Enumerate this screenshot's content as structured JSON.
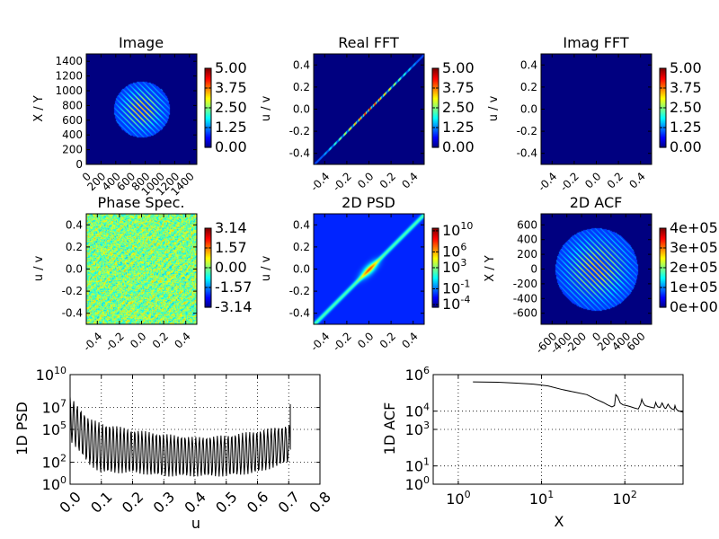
{
  "chart_data": [
    {
      "type": "heatmap",
      "title": "Image",
      "ylabel": "X / Y",
      "xlim": [
        0,
        1500
      ],
      "ylim": [
        0,
        1500
      ],
      "xticks": [
        "0",
        "200",
        "400",
        "600",
        "800",
        "1000",
        "1200",
        "1400"
      ],
      "xtick_values": [
        0,
        200,
        400,
        600,
        800,
        1000,
        1200,
        1400
      ],
      "yticks": [
        "0",
        "200",
        "400",
        "600",
        "800",
        "1000",
        "1200",
        "1400"
      ],
      "ytick_values": [
        0,
        200,
        400,
        600,
        800,
        1000,
        1200,
        1400
      ],
      "pattern": "stripes-disk",
      "center": [
        750,
        750
      ],
      "radius": 380,
      "colorbar": {
        "ticks": [
          "0.00",
          "1.25",
          "2.50",
          "3.75",
          "5.00"
        ],
        "tick_values": [
          0,
          1.25,
          2.5,
          3.75,
          5
        ]
      }
    },
    {
      "type": "heatmap",
      "title": "Real FFT",
      "ylabel": "u / v",
      "xlim": [
        -0.5,
        0.5
      ],
      "ylim": [
        -0.5,
        0.5
      ],
      "xticks": [
        "-0.4",
        "-0.2",
        "0.0",
        "0.2",
        "0.4"
      ],
      "xtick_values": [
        -0.4,
        -0.2,
        0,
        0.2,
        0.4
      ],
      "yticks": [
        "-0.4",
        "-0.2",
        "0.0",
        "0.2",
        "0.4"
      ],
      "ytick_values": [
        -0.4,
        -0.2,
        0,
        0.2,
        0.4
      ],
      "pattern": "thin-diagonal",
      "colorbar": {
        "ticks": [
          "0.00",
          "1.25",
          "2.50",
          "3.75",
          "5.00"
        ],
        "tick_values": [
          0,
          1.25,
          2.5,
          3.75,
          5
        ]
      }
    },
    {
      "type": "heatmap",
      "title": "Imag FFT",
      "ylabel": "u / v",
      "xlim": [
        -0.5,
        0.5
      ],
      "ylim": [
        -0.5,
        0.5
      ],
      "xticks": [
        "-0.4",
        "-0.2",
        "0.0",
        "0.2",
        "0.4"
      ],
      "xtick_values": [
        -0.4,
        -0.2,
        0,
        0.2,
        0.4
      ],
      "yticks": [
        "-0.4",
        "-0.2",
        "0.0",
        "0.2",
        "0.4"
      ],
      "ytick_values": [
        -0.4,
        -0.2,
        0,
        0.2,
        0.4
      ],
      "pattern": "empty",
      "colorbar": {
        "ticks": [
          "0.00",
          "1.25",
          "2.50",
          "3.75",
          "5.00"
        ],
        "tick_values": [
          0,
          1.25,
          2.5,
          3.75,
          5
        ]
      }
    },
    {
      "type": "heatmap",
      "title": "Phase Spec.",
      "ylabel": "u / v",
      "xlim": [
        -0.5,
        0.5
      ],
      "ylim": [
        -0.5,
        0.5
      ],
      "xticks": [
        "-0.4",
        "-0.2",
        "0.0",
        "0.2",
        "0.4"
      ],
      "xtick_values": [
        -0.4,
        -0.2,
        0,
        0.2,
        0.4
      ],
      "yticks": [
        "-0.4",
        "-0.2",
        "0.0",
        "0.2",
        "0.4"
      ],
      "ytick_values": [
        -0.4,
        -0.2,
        0,
        0.2,
        0.4
      ],
      "pattern": "noise",
      "colorbar": {
        "ticks": [
          "-3.14",
          "-1.57",
          "0.00",
          "1.57",
          "3.14"
        ],
        "tick_values": [
          -3.14,
          -1.57,
          0,
          1.57,
          3.14
        ]
      }
    },
    {
      "type": "heatmap",
      "title": "2D PSD",
      "ylabel": "u / v",
      "xlim": [
        -0.5,
        0.5
      ],
      "ylim": [
        -0.5,
        0.5
      ],
      "xticks": [
        "-0.4",
        "-0.2",
        "0.0",
        "0.2",
        "0.4"
      ],
      "xtick_values": [
        -0.4,
        -0.2,
        0,
        0.2,
        0.4
      ],
      "yticks": [
        "-0.4",
        "-0.2",
        "0.0",
        "0.2",
        "0.4"
      ],
      "ytick_values": [
        -0.4,
        -0.2,
        0,
        0.2,
        0.4
      ],
      "pattern": "broad-diagonal",
      "colorbar": {
        "scale": "log",
        "ticks": [
          {
            "base": "10",
            "exp": "-4"
          },
          {
            "base": "10",
            "exp": "-1"
          },
          {
            "base": "10",
            "exp": "3"
          },
          {
            "base": "10",
            "exp": "6"
          },
          {
            "base": "10",
            "exp": "10"
          }
        ],
        "tick_values": [
          -4,
          -1,
          3,
          6,
          10
        ],
        "range": [
          -4.5,
          10.5
        ]
      }
    },
    {
      "type": "heatmap",
      "title": "2D ACF",
      "ylabel": "X / Y",
      "xlim": [
        -750,
        750
      ],
      "ylim": [
        -750,
        750
      ],
      "xticks": [
        "-600",
        "-400",
        "-200",
        "0",
        "200",
        "400",
        "600"
      ],
      "xtick_values": [
        -600,
        -400,
        -200,
        0,
        200,
        400,
        600
      ],
      "yticks": [
        "-600",
        "-400",
        "-200",
        "0",
        "200",
        "400",
        "600"
      ],
      "ytick_values": [
        -600,
        -400,
        -200,
        0,
        200,
        400,
        600
      ],
      "pattern": "stripes-disk",
      "center": [
        0,
        0
      ],
      "radius": 560,
      "colorbar": {
        "ticks": [
          "0e+00",
          "1e+05",
          "2e+05",
          "3e+05",
          "4e+05"
        ],
        "tick_values": [
          0,
          100000.0,
          200000.0,
          300000.0,
          400000.0
        ]
      }
    },
    {
      "type": "line",
      "title": "",
      "xlabel": "u",
      "ylabel": "1D PSD",
      "xlim": [
        0,
        0.8
      ],
      "yscale": "log",
      "ylim": [
        1,
        10000000000.0
      ],
      "grid": true,
      "xticks": [
        "0.0",
        "0.1",
        "0.2",
        "0.3",
        "0.4",
        "0.5",
        "0.6",
        "0.7",
        "0.8"
      ],
      "xtick_values": [
        0,
        0.1,
        0.2,
        0.3,
        0.4,
        0.5,
        0.6,
        0.7,
        0.8
      ],
      "yticks": [
        {
          "base": "10",
          "exp": "0",
          "value": 1
        },
        {
          "base": "10",
          "exp": "2",
          "value": 100
        },
        {
          "base": "10",
          "exp": "5",
          "value": 100000
        },
        {
          "base": "10",
          "exp": "7",
          "value": 10000000
        },
        {
          "base": "10",
          "exp": "10",
          "value": 10000000000
        }
      ],
      "series": [
        {
          "x_start": 0.0,
          "x_end": 0.705,
          "points": 360,
          "start_value": 100000000.0,
          "final_value": 20000000.0,
          "oscillation_period": 0.0115,
          "envelope": [
            [
              0,
              100000000.0,
              10000.0
            ],
            [
              0.06,
              1000000.0,
              60
            ],
            [
              0.1,
              400000.0,
              10
            ],
            [
              0.2,
              100000.0,
              10
            ],
            [
              0.3,
              40000.0,
              5
            ],
            [
              0.4,
              20000.0,
              5
            ],
            [
              0.5,
              30000.0,
              5
            ],
            [
              0.6,
              80000.0,
              10
            ],
            [
              0.68,
              200000.0,
              60
            ],
            [
              0.705,
              300000.0,
              100
            ]
          ]
        }
      ]
    },
    {
      "type": "line",
      "title": "",
      "xlabel": "X",
      "ylabel": "1D ACF",
      "xscale": "log",
      "yscale": "log",
      "xlim": [
        0.5,
        500
      ],
      "ylim": [
        1,
        1000000.0
      ],
      "grid": true,
      "xticks": [
        {
          "base": "10",
          "exp": "0",
          "value": 1
        },
        {
          "base": "10",
          "exp": "1",
          "value": 10
        },
        {
          "base": "10",
          "exp": "2",
          "value": 100
        }
      ],
      "yticks": [
        {
          "base": "10",
          "exp": "0",
          "value": 1
        },
        {
          "base": "10",
          "exp": "1",
          "value": 10
        },
        {
          "base": "10",
          "exp": "3",
          "value": 1000
        },
        {
          "base": "10",
          "exp": "4",
          "value": 10000
        },
        {
          "base": "10",
          "exp": "6",
          "value": 1000000
        }
      ],
      "series": [
        {
          "x": [
            1.5,
            3,
            5,
            8,
            12,
            18,
            25,
            35,
            45,
            55,
            62,
            70,
            75,
            78,
            82,
            88,
            95,
            105,
            115,
            130,
            145,
            155,
            160,
            165,
            175,
            190,
            210,
            225,
            235,
            240,
            250,
            265,
            280,
            290,
            300,
            310,
            330,
            350,
            370,
            390,
            400,
            410,
            430,
            450,
            470,
            490,
            500
          ],
          "y": [
            400000,
            380000,
            340000,
            300000,
            240000,
            150000,
            110000,
            80000,
            45000,
            30000,
            22000,
            17000,
            20000,
            80000,
            60000,
            28000,
            22000,
            20000,
            18000,
            15000,
            13000,
            25000,
            45000,
            30000,
            20000,
            18000,
            16000,
            15000,
            30000,
            22000,
            17000,
            16000,
            28000,
            20000,
            15000,
            14000,
            24000,
            16000,
            13000,
            12000,
            20000,
            14000,
            11000,
            10000,
            9500,
            9000,
            9000
          ]
        }
      ]
    }
  ]
}
